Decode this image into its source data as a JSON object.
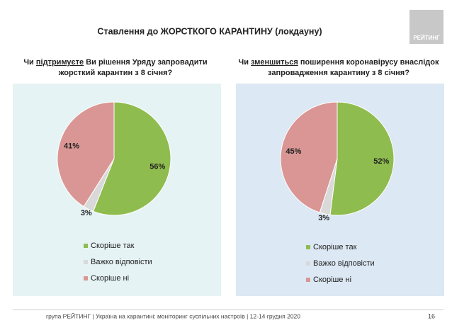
{
  "title": "Ставлення до ЖОРСТКОГО КАРАНТИНУ (локдауну)",
  "logo": "РЕЙТИНГ",
  "footer": "група РЕЙТИНГ | Україна на карантині: моніторинг суспільних настроїв | 12-14 грудня 2020",
  "page_number": "16",
  "chart_data": [
    {
      "type": "pie",
      "title": [
        "Чи ",
        "підтримуєте",
        " Ви рішення Уряду запровадити",
        "жорсткий карантин з 8 січня?"
      ],
      "categories": [
        "Скоріше так",
        "Важко відповісти",
        "Скоріше ні"
      ],
      "values": [
        56,
        3,
        41
      ],
      "value_labels": [
        "56%",
        "3%",
        "41%"
      ],
      "colors": [
        "#8fbc4e",
        "#d9d9d9",
        "#d99694"
      ],
      "background": "#e6f3f5"
    },
    {
      "type": "pie",
      "title": [
        "Чи ",
        "зменшиться",
        " поширення коронавірусу внаслідок",
        "запровадження карантину з 8 січня?"
      ],
      "categories": [
        "Скоріше так",
        "Важко відповісти",
        "Скоріше ні"
      ],
      "values": [
        52,
        3,
        45
      ],
      "value_labels": [
        "52%",
        "3%",
        "45%"
      ],
      "colors": [
        "#8fbc4e",
        "#d9d9d9",
        "#d99694"
      ],
      "background": "#dce8f4"
    }
  ]
}
